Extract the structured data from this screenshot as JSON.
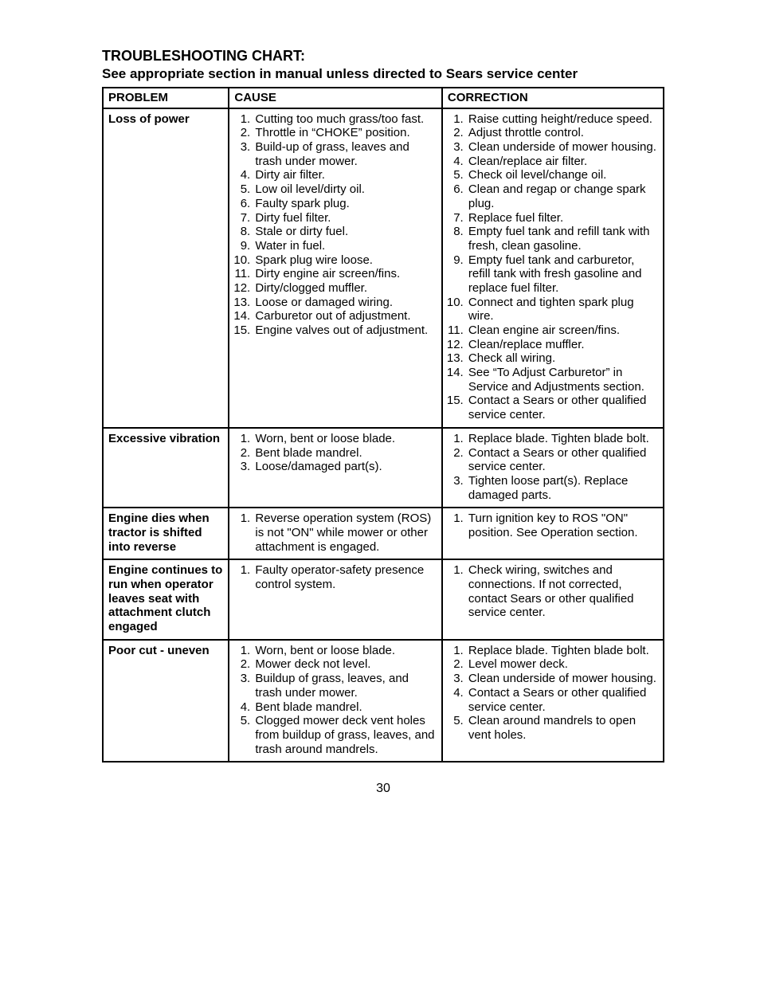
{
  "page": {
    "title": "TROUBLESHOOTING CHART:",
    "subtitle": "See appropriate section in manual unless directed to Sears service center",
    "page_number": "30"
  },
  "headers": {
    "problem": "PROBLEM",
    "cause": "CAUSE",
    "correction": "CORRECTION"
  },
  "rows": [
    {
      "problem": "Loss of power",
      "causes": [
        "Cutting too much grass/too fast.",
        "Throttle in “CHOKE” position.",
        "Build-up of grass, leaves and trash under mower.",
        "Dirty air filter.",
        "Low oil level/dirty oil.",
        "Faulty spark plug.",
        "Dirty fuel filter.",
        "Stale or dirty fuel.",
        "Water in fuel.",
        "Spark plug wire loose.",
        "Dirty engine air screen/fins.",
        "Dirty/clogged muffler.",
        "Loose or damaged wiring.",
        "Carburetor out of adjustment.",
        "Engine valves out of adjustment."
      ],
      "corrections": [
        "Raise cutting height/reduce speed.",
        "Adjust throttle control.",
        "Clean underside of mower housing.",
        "Clean/replace air filter.",
        "Check oil level/change oil.",
        "Clean and regap or change spark plug.",
        "Replace fuel filter.",
        "Empty fuel tank and refill tank with fresh, clean gasoline.",
        "Empty fuel tank and carburetor, refill tank with fresh gasoline and replace fuel filter.",
        "Connect and tighten spark plug wire.",
        "Clean engine air screen/fins.",
        "Clean/replace muffler.",
        "Check all wiring.",
        "See “To Adjust Carburetor” in Service and Adjustments section.",
        "Contact a Sears or other qualified service center."
      ]
    },
    {
      "problem": "Excessive vibration",
      "causes": [
        "Worn, bent or loose blade.",
        "Bent blade mandrel.",
        "Loose/damaged part(s)."
      ],
      "corrections": [
        "Replace blade. Tighten blade bolt.",
        "Contact a Sears or other qualified service center.",
        "Tighten loose part(s). Replace damaged parts."
      ]
    },
    {
      "problem": "Engine dies when tractor is shifted into reverse",
      "causes": [
        "Reverse operation system (ROS) is not \"ON\" while mower or other attachment is engaged."
      ],
      "corrections": [
        "Turn ignition key to ROS \"ON\" position. See Operation section."
      ]
    },
    {
      "problem": "Engine continues to run when operator leaves seat with attachment clutch engaged",
      "causes": [
        "Faulty operator-safety presence control system."
      ],
      "corrections": [
        "Check wiring, switches and connections. If not corrected, contact Sears or other qualified service center."
      ]
    },
    {
      "problem": "Poor cut - uneven",
      "causes": [
        "Worn, bent or loose blade.",
        "Mower deck not level.",
        "Buildup of grass, leaves, and trash under mower.",
        "Bent blade mandrel.",
        "Clogged mower deck vent holes from buildup of grass, leaves, and trash around mandrels."
      ],
      "corrections": [
        "Replace blade. Tighten blade bolt.",
        "Level mower deck.",
        "Clean underside of mower housing.",
        "Contact a Sears or other qualified service center.",
        "Clean around mandrels to open vent holes."
      ]
    }
  ]
}
